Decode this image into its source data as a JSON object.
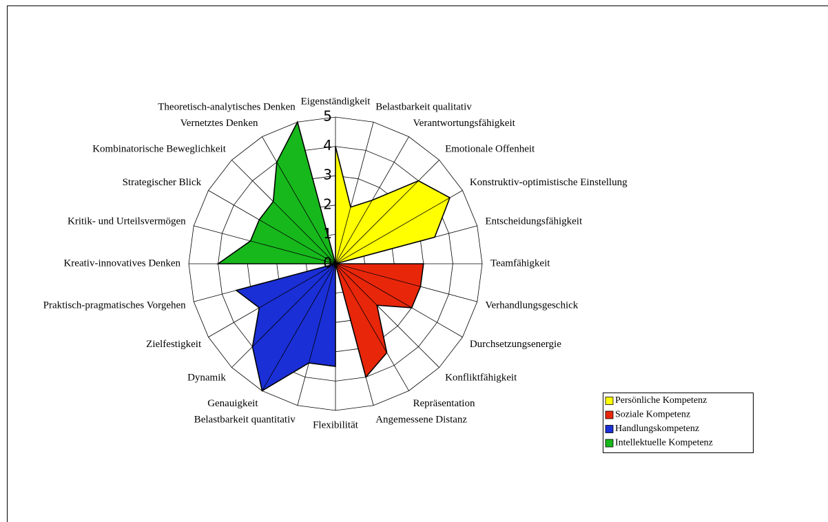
{
  "chart_data": {
    "type": "radar",
    "categories": [
      "Eigenständigkeit",
      "Belastbarkeit qualitativ",
      "Verantwortungsfähigkeit",
      "Emotionale Offenheit",
      "Konstruktiv-optimistische Einstellung",
      "Entscheidungsfähigkeit",
      "Teamfähigkeit",
      "Verhandlungsgeschick",
      "Durchsetzungsenergie",
      "Konfliktfähigkeit",
      "Repräsentation",
      "Angemessene Distanz",
      "Flexibilität",
      "Belastbarkeit quantitativ",
      "Genauigkeit",
      "Dynamik",
      "Zielfestigkeit",
      "Praktisch-pragmatisches Vorgehen",
      "Kreativ-innovatives Denken",
      "Kritik- und Urteilsvermögen",
      "Strategischer Blick",
      "Kombinatorische Beweglichkeit",
      "Vernetztes Denken",
      "Theoretisch-analytisches Denken"
    ],
    "series": [
      {
        "name": "Persönliche Kompetenz",
        "color": "#ffff00",
        "values": [
          4,
          2,
          2.5,
          4,
          4.5,
          3.5,
          null,
          null,
          null,
          null,
          null,
          null,
          null,
          null,
          null,
          null,
          null,
          null,
          null,
          null,
          null,
          null,
          null,
          null
        ]
      },
      {
        "name": "Soziale Kompetenz",
        "color": "#e8260a",
        "values": [
          null,
          null,
          null,
          null,
          null,
          null,
          3,
          3,
          3,
          2,
          3.5,
          4,
          null,
          null,
          null,
          null,
          null,
          null,
          null,
          null,
          null,
          null,
          null,
          null
        ]
      },
      {
        "name": "Handlungskompetenz",
        "color": "#1a2fd6",
        "values": [
          null,
          null,
          null,
          null,
          null,
          null,
          null,
          null,
          null,
          null,
          null,
          null,
          3.5,
          3.5,
          5,
          4,
          3,
          3.5,
          null,
          null,
          null,
          null,
          null,
          null
        ]
      },
      {
        "name": "Intellektuelle Kompetenz",
        "color": "#17b81c",
        "values": [
          null,
          null,
          null,
          null,
          null,
          null,
          null,
          null,
          null,
          null,
          null,
          null,
          null,
          null,
          null,
          null,
          null,
          null,
          4,
          3,
          3,
          3,
          4,
          5
        ]
      }
    ],
    "ylim": [
      0,
      5
    ],
    "yticks": [
      0,
      1,
      2,
      3,
      4,
      5
    ],
    "grid": true,
    "legend": "lower right"
  }
}
